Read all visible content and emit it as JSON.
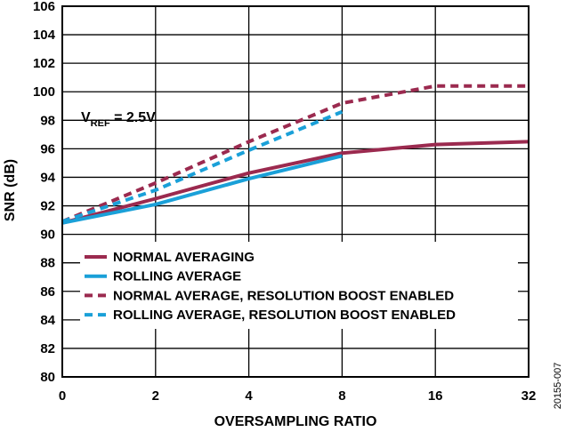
{
  "chart_data": {
    "type": "line",
    "xlabel": "OVERSAMPLING RATIO",
    "ylabel": "SNR (dB)",
    "categories": [
      "0",
      "2",
      "4",
      "8",
      "16",
      "32"
    ],
    "ylim": [
      80,
      106
    ],
    "yticks": [
      "80",
      "82",
      "84",
      "86",
      "88",
      "90",
      "92",
      "94",
      "96",
      "98",
      "100",
      "102",
      "104",
      "106"
    ],
    "grid": true,
    "annotation": {
      "main": "V",
      "sub": "REF",
      "rest": " = 2.5V"
    },
    "figure_id": "20155-007",
    "legend_position": "bottom-left",
    "series": [
      {
        "name": "NORMAL AVERAGING",
        "color": "#9b2a4f",
        "dash": "solid",
        "values": [
          90.8,
          92.5,
          94.3,
          95.7,
          96.3,
          96.5
        ]
      },
      {
        "name": "ROLLING AVERAGE",
        "color": "#1aa0d8",
        "dash": "solid",
        "values": [
          90.8,
          92.1,
          93.9,
          95.5,
          null,
          null
        ]
      },
      {
        "name": "NORMAL AVERAGE, RESOLUTION BOOST ENABLED",
        "color": "#9b2a4f",
        "dash": "dashed",
        "values": [
          90.9,
          93.6,
          96.5,
          99.2,
          100.4,
          100.4
        ]
      },
      {
        "name": "ROLLING AVERAGE, RESOLUTION BOOST ENABLED",
        "color": "#1aa0d8",
        "dash": "dashed",
        "values": [
          90.9,
          93.1,
          95.9,
          98.6,
          null,
          null
        ]
      }
    ]
  }
}
